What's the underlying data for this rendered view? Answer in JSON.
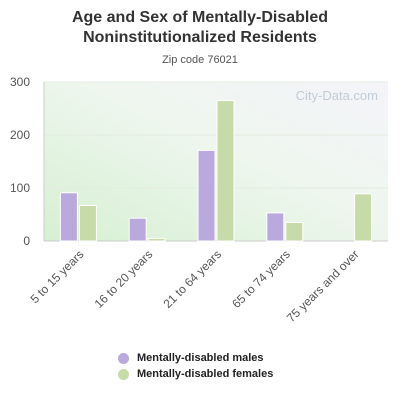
{
  "chart_data": {
    "type": "bar",
    "title": "Age and Sex of Mentally-Disabled Noninstitutionalized Residents",
    "subtitle": "Zip code 76021",
    "watermark": "City-Data.com",
    "categories": [
      "5 to 15 years",
      "16 to 20 years",
      "21 to 64 years",
      "65 to 74 years",
      "75 years and over"
    ],
    "series": [
      {
        "name": "Mentally-disabled males",
        "color": "#b9a9dc",
        "values": [
          91,
          43,
          171,
          53,
          0
        ]
      },
      {
        "name": "Mentally-disabled females",
        "color": "#c7dba8",
        "values": [
          67,
          5,
          265,
          35,
          89
        ]
      }
    ],
    "yticks": [
      0,
      100,
      200,
      300
    ],
    "ylim": [
      0,
      300
    ],
    "xlabel": "",
    "ylabel": "",
    "grid": true,
    "legend": "bottom"
  }
}
